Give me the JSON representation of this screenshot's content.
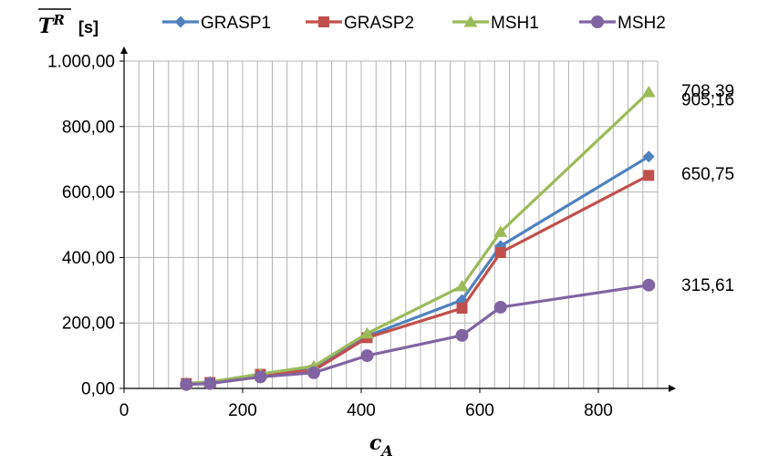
{
  "chart_data": {
    "type": "line",
    "title": "",
    "ylabel_symbol": "T",
    "ylabel_superscript": "R",
    "ylabel_unit": "[s]",
    "xlabel_symbol": "c",
    "xlabel_subscript": "A",
    "x": [
      105,
      145,
      230,
      320,
      410,
      570,
      635,
      885
    ],
    "xlim": [
      0,
      900
    ],
    "ylim": [
      0,
      1000
    ],
    "x_ticks": [
      0,
      200,
      400,
      600,
      800
    ],
    "x_tick_labels": [
      "0",
      "200",
      "400",
      "600",
      "800"
    ],
    "y_ticks": [
      0,
      200,
      400,
      600,
      800,
      1000
    ],
    "y_tick_labels": [
      "0,00",
      "200,00",
      "400,00",
      "600,00",
      "800,00",
      "1.000,00"
    ],
    "grid": true,
    "legend_position": "top",
    "series": [
      {
        "name": "GRASP1",
        "color": "#4F81BD",
        "marker": "diamond",
        "values": [
          15,
          18,
          42,
          58,
          160,
          270,
          435,
          708.39
        ]
      },
      {
        "name": "GRASP2",
        "color": "#C0504D",
        "marker": "square",
        "values": [
          15,
          18,
          43,
          55,
          155,
          245,
          415,
          650.75
        ]
      },
      {
        "name": "MSH1",
        "color": "#9BBB59",
        "marker": "triangle",
        "values": [
          16,
          20,
          44,
          68,
          168,
          312,
          478,
          905.16
        ]
      },
      {
        "name": "MSH2",
        "color": "#8064A2",
        "marker": "circle",
        "values": [
          12,
          15,
          35,
          48,
          100,
          162,
          248,
          315.61
        ]
      }
    ],
    "end_labels": [
      "905,16",
      "708,39",
      "650,75",
      "315,61"
    ]
  }
}
